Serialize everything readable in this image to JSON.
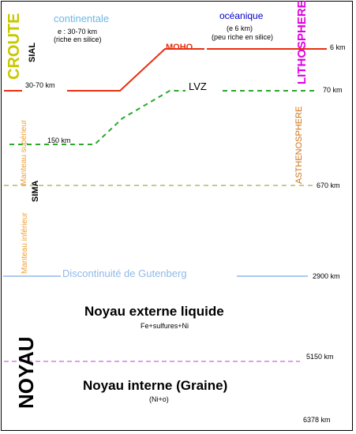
{
  "colors": {
    "croute": "#c8c800",
    "continental": "#6bb8e8",
    "oceanic": "#0000cc",
    "lithosphere": "#e000e0",
    "moho": "#e83010",
    "lvz": "#2aa82a",
    "manteau": "#f0a030",
    "asthenosphere": "#d07010",
    "transition": "#c8c890",
    "gutenberg": "#90b8e8",
    "inner_core": "#d080e0"
  },
  "labels": {
    "croute": "CROUTE",
    "sial": "SIAL",
    "continentale": "continentale",
    "cont_thickness": "e : 30-70 km",
    "cont_composition": "(riche en silice)",
    "oceanique": "océanique",
    "oce_thickness": "(e   6 km)",
    "oce_composition": "(peu riche en silice)",
    "lithosphere": "LITHOSPHERE",
    "moho": "MOHO",
    "lvz": "LVZ",
    "asthenosphere": "ASTHENOSPHERE",
    "manteau_superieur": "Manteau supérieur",
    "sima": "SIMA",
    "manteau_inferieur": "Manteau inférieur",
    "gutenberg": "Discontinuité de Gutenberg",
    "noyau_externe": "Noyau externe liquide",
    "noyau_externe_comp": "Fe+sulfures+Ni",
    "noyau": "NOYAU",
    "noyau_interne": "Noyau interne (Graine)",
    "noyau_interne_comp": "(Ni+o)"
  },
  "depths": {
    "km6": "6 km",
    "km30_70": "30-70 km",
    "km70": "70 km",
    "km150": "150 km",
    "km670": "670 km",
    "km2900": "2900 km",
    "km5150": "5150 km",
    "km6378": "6378 km"
  }
}
